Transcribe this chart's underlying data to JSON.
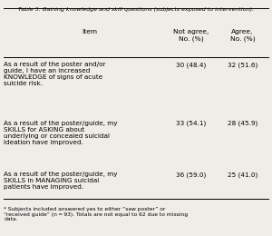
{
  "title": "Table 5. Gaining knowledge and skill questions (subjects exposed to intervention).",
  "col_headers": [
    "Item",
    "Not agree,\nNo. (%)",
    "Agree,\nNo. (%)"
  ],
  "rows": [
    {
      "item": "As a result of the poster and/or\nguide, I have an increased\nKNOWLEDGE of signs of acute\nsuicide risk.",
      "not_agree": "30 (48.4)",
      "agree": "32 (51.6)"
    },
    {
      "item": "As a result of the poster/guide, my\nSKILLS for ASKING about\nunderlying or concealed suicidal\nideation have improved.",
      "not_agree": "33 (54.1)",
      "agree": "28 (45.9)"
    },
    {
      "item": "As a result of the poster/guide, my\nSKILLS in MANAGING suicidal\npatients have improved.",
      "not_agree": "36 (59.0)",
      "agree": "25 (41.0)"
    }
  ],
  "footnote": "* Subjects included answered yes to either “saw poster” or\n“received guide” (n = 93). Totals are not equal to 62 due to missing\ndata.",
  "bg_color": "#f0ede8",
  "text_color": "#000000",
  "font_size": 5.2,
  "header_font_size": 5.4
}
